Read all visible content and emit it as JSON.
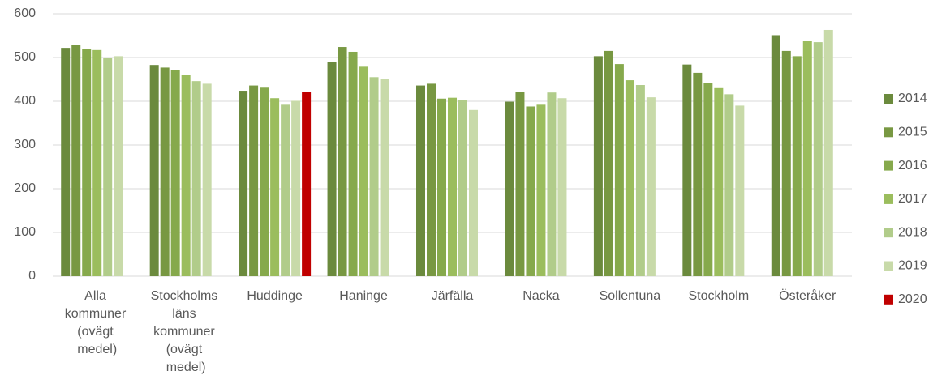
{
  "chart_data": {
    "type": "bar",
    "categories": [
      "Alla kommuner (ovägt medel)",
      "Stockholms läns kommuner (ovägt medel)",
      "Huddinge",
      "Haninge",
      "Järfälla",
      "Nacka",
      "Sollentuna",
      "Stockholm",
      "Österåker"
    ],
    "series": [
      {
        "name": "2014",
        "color": "#6b8a3d",
        "values": [
          522,
          483,
          424,
          490,
          436,
          399,
          503,
          484,
          551
        ]
      },
      {
        "name": "2015",
        "color": "#789842",
        "values": [
          528,
          477,
          436,
          524,
          440,
          421,
          515,
          465,
          515
        ]
      },
      {
        "name": "2016",
        "color": "#86a94c",
        "values": [
          519,
          471,
          431,
          513,
          406,
          388,
          485,
          442,
          503
        ]
      },
      {
        "name": "2017",
        "color": "#9bbd5d",
        "values": [
          517,
          461,
          407,
          479,
          408,
          392,
          448,
          430,
          538
        ]
      },
      {
        "name": "2018",
        "color": "#b1cc8a",
        "values": [
          500,
          446,
          392,
          455,
          402,
          420,
          437,
          416,
          535
        ]
      },
      {
        "name": "2019",
        "color": "#c8daa9",
        "values": [
          503,
          440,
          401,
          450,
          380,
          407,
          409,
          390,
          563
        ]
      },
      {
        "name": "2020",
        "color": "#c00000",
        "values": [
          null,
          null,
          421,
          null,
          null,
          null,
          null,
          null,
          null
        ]
      }
    ],
    "ylim": [
      0,
      600
    ],
    "yticks": [
      0,
      100,
      200,
      300,
      400,
      500,
      600
    ],
    "grid": true,
    "legend": "right"
  }
}
